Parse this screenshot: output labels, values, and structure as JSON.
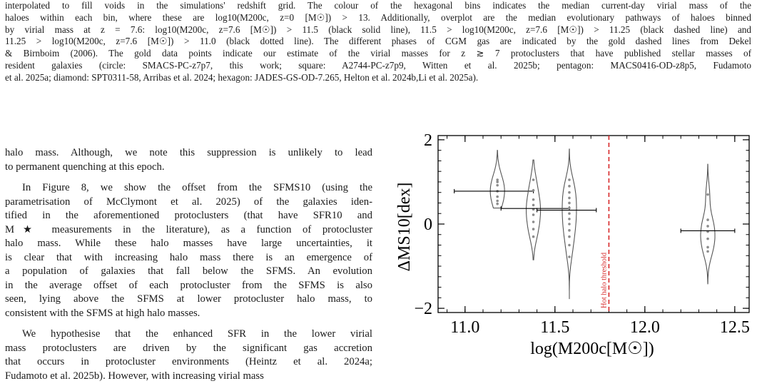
{
  "caption": {
    "lines": [
      "interpolated to fill voids in the simulations' redshift grid. The colour of the hexagonal bins indicates the median current-day virial mass of the",
      "haloes within each bin, where these are log10(M200c, z=0 [M☉]) > 13. Additionally, overplot are the median evolutionary pathways of haloes binned",
      "by virial mass at z = 7.6: log10(M200c, z=7.6 [M☉]) > 11.5 (black solid line), 11.5 > log10(M200c, z=7.6 [M☉]) > 11.25 (black dashed line) and",
      "11.25 > log10(M200c, z=7.6 [M☉]) > 11.0 (black dotted line). The different phases of CGM gas are indicated by the gold dashed lines from Dekel",
      "& Birnboim (2006). The gold data points indicate our estimate of the virial masses for z ≳ 7 protoclusters that have published stellar masses of",
      "resident galaxies (circle: SMACS-PC-z7p7, this work; square: A2744-PC-z7p9, Witten et al. 2025b; pentagon: MACS0416-OD-z8p5, Fudamoto",
      "et al. 2025a; diamond: SPT0311-58, Arribas et al. 2024; hexagon: JADES-GS-OD-7.265, Helton et al. 2024b,Li et al. 2025a)."
    ]
  },
  "body_text": {
    "para1": [
      "halo mass. Although, we note this suppression is unlikely to lead",
      "to permanent quenching at this epoch."
    ],
    "para2": [
      "In Figure 8, we show the offset from the SFMS10 (using the",
      "parametrisation of McClymont et al. 2025) of the galaxies iden-",
      "tified in the aforementioned protoclusters (that have SFR10 and",
      "M★ measurements in the literature), as a function of protocluster",
      "halo mass. While these halo masses have large uncertainties, it",
      "is clear that with increasing halo mass there is an emergence of",
      "a population of galaxies that fall below the SFMS. An evolution",
      "in the average offset of each protocluster from the SFMS is also",
      "seen, lying above the SFMS at lower protocluster halo mass, to",
      "consistent with the SFMS at high halo masses."
    ],
    "para3": [
      "We hypothesise that the enhanced SFR in the lower virial",
      "mass protoclusters are driven by the significant gas accretion",
      "that occurs in protocluster environments (Heintz et al. 2024a;",
      "Fudamoto et al. 2025b). However, with increasing virial mass"
    ]
  },
  "chart_data": {
    "type": "violin",
    "xlabel": "log(M200c[M☉])",
    "ylabel": "ΔMS10[dex]",
    "xlim": [
      10.85,
      12.58
    ],
    "ylim": [
      -2.1,
      2.1
    ],
    "xticks": [
      "11.0",
      "11.5",
      "12.0",
      "12.5"
    ],
    "yticks": [
      "−2",
      "0",
      "2"
    ],
    "threshold": {
      "x": 11.8,
      "label": "Hot halo threshold",
      "color": "#d62728"
    },
    "line_color": "#555555",
    "point_color": "#8c8c8c",
    "protoclusters": [
      {
        "x": 11.18,
        "xerr": [
          0.24,
          0.2
        ],
        "y_mean": 0.78,
        "ymin": 0.38,
        "ymax": 1.75,
        "points": [
          1.05,
          0.92,
          0.78,
          0.65,
          0.55,
          0.48,
          1.0
        ]
      },
      {
        "x": 11.38,
        "xerr": [
          0.18,
          0.2
        ],
        "y_mean": 0.37,
        "ymin": -0.85,
        "ymax": 1.52,
        "points": [
          1.05,
          0.8,
          0.58,
          0.45,
          0.35,
          0.22,
          0.05,
          -0.12,
          -0.3
        ]
      },
      {
        "x": 11.58,
        "xerr": [
          0.18,
          0.15
        ],
        "y_mean": 0.33,
        "ymin": -1.78,
        "ymax": 1.78,
        "points": [
          1.05,
          0.9,
          0.75,
          0.62,
          0.5,
          0.38,
          0.25,
          0.12,
          0.0,
          -0.15,
          -0.3,
          -0.5,
          -0.78
        ]
      },
      {
        "x": 12.35,
        "xerr": [
          0.15,
          0.15
        ],
        "y_mean": -0.16,
        "ymin": -1.42,
        "ymax": 1.42,
        "points": [
          0.7,
          0.1,
          -0.05,
          -0.18,
          -0.35,
          -0.55,
          -0.65
        ]
      }
    ]
  }
}
